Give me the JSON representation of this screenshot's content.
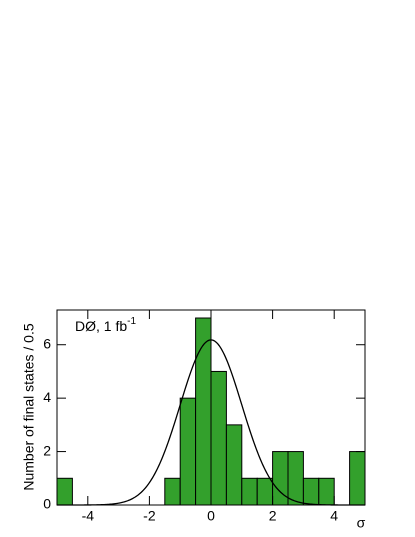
{
  "chart_data": {
    "type": "histogram",
    "xlabel": "σ",
    "ylabel": "Number of final states / 0.5",
    "annotation": {
      "text": "DØ, 1 fb",
      "superscript": "-1"
    },
    "bins": [
      -5,
      -4.5,
      -4,
      -3.5,
      -3,
      -2.5,
      -2,
      -1.5,
      -1,
      -0.5,
      0,
      0.5,
      1,
      1.5,
      2,
      2.5,
      3,
      3.5,
      4,
      4.5,
      5
    ],
    "counts": [
      1,
      0,
      0,
      0,
      0,
      0,
      0,
      1,
      4,
      7,
      5,
      3,
      1,
      1,
      2,
      2,
      1,
      1,
      0,
      2
    ],
    "color": "#33a02c",
    "curve": {
      "type": "gaussian",
      "mean": 0,
      "sigma": 1,
      "amplitude": 6.18,
      "color": "#000000"
    },
    "xlim": [
      -5,
      5
    ],
    "ylim": [
      0,
      7.3
    ],
    "xticks": [
      -4,
      -2,
      0,
      2,
      4
    ],
    "yticks": [
      0,
      2,
      4,
      6
    ]
  }
}
